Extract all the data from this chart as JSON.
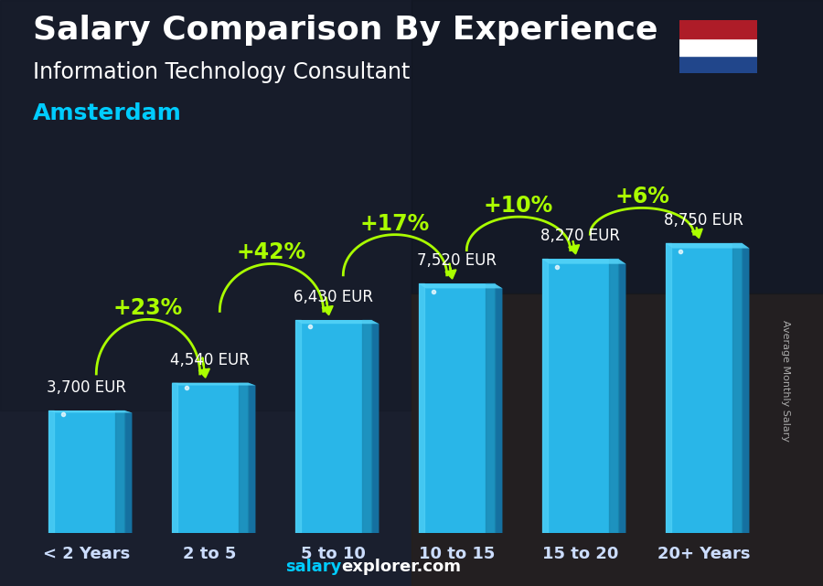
{
  "title": "Salary Comparison By Experience",
  "subtitle": "Information Technology Consultant",
  "city": "Amsterdam",
  "ylabel": "Average Monthly Salary",
  "watermark_salary": "salary",
  "watermark_rest": "explorer.com",
  "categories": [
    "< 2 Years",
    "2 to 5",
    "5 to 10",
    "10 to 15",
    "15 to 20",
    "20+ Years"
  ],
  "values": [
    3700,
    4540,
    6430,
    7520,
    8270,
    8750
  ],
  "value_labels": [
    "3,700 EUR",
    "4,540 EUR",
    "6,430 EUR",
    "7,520 EUR",
    "8,270 EUR",
    "8,750 EUR"
  ],
  "pct_changes": [
    "+23%",
    "+42%",
    "+17%",
    "+10%",
    "+6%"
  ],
  "bar_main_color": "#29b6e8",
  "bar_light_color": "#55d4f8",
  "bar_dark_color": "#1a8ab5",
  "bar_right_color": "#1570a0",
  "bg_color": "#2a2a3a",
  "title_color": "#ffffff",
  "subtitle_color": "#ffffff",
  "city_color": "#00ccff",
  "value_label_color": "#ffffff",
  "pct_color": "#aaff00",
  "arrow_color": "#aaff00",
  "xlabel_color": "#ccddff",
  "watermark_salary_color": "#00ccff",
  "watermark_rest_color": "#ffffff",
  "ylabel_color": "#aaaaaa",
  "flag_colors": [
    "#ae1c28",
    "#ffffff",
    "#21468b"
  ],
  "title_fontsize": 26,
  "subtitle_fontsize": 17,
  "city_fontsize": 18,
  "value_fontsize": 12,
  "pct_fontsize": 17,
  "xlabel_fontsize": 13,
  "ylabel_fontsize": 8,
  "watermark_fontsize": 13
}
